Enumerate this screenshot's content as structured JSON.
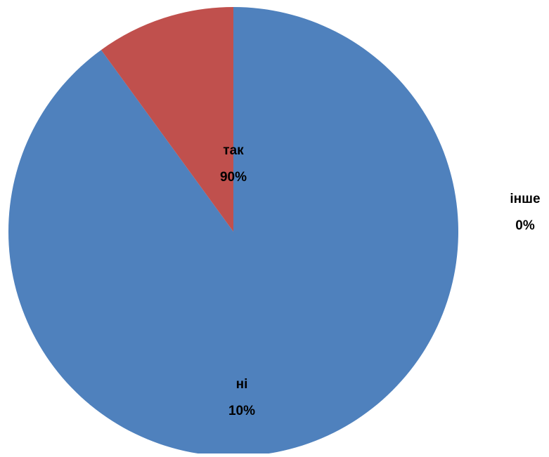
{
  "chart_data": {
    "type": "pie",
    "title": "",
    "slices": [
      {
        "label": "так",
        "value": 90,
        "percent_label": "90%",
        "color": "#4F81BD"
      },
      {
        "label": "ні",
        "value": 10,
        "percent_label": "10%",
        "color": "#C0504D"
      },
      {
        "label": "інше",
        "value": 0,
        "percent_label": "0%",
        "color": "#9BBB59"
      }
    ],
    "start_angle_deg": 0,
    "direction": "clockwise",
    "data_labels": "category and percent"
  }
}
